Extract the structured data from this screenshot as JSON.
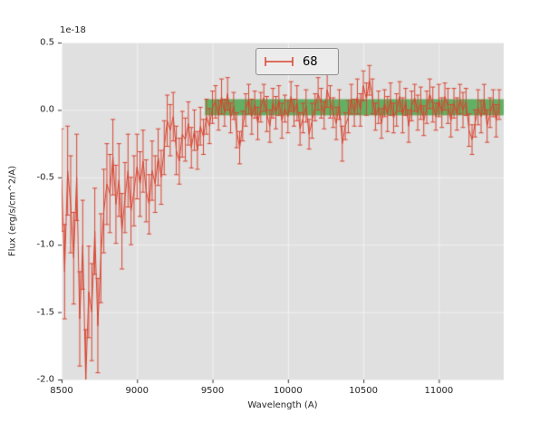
{
  "figure": {
    "offset_text": "1e-18",
    "background": "#ffffff",
    "axes_background": "#e0e0e0",
    "grid_color": "#f2f2f2"
  },
  "chart_data": {
    "type": "line",
    "subtype": "errorbar-spectrum",
    "title": "",
    "xlabel": "Wavelength (A)",
    "ylabel": "Flux (erg/s/cm^2/A)",
    "offset_text": "1e-18",
    "xlim": [
      8500,
      11430
    ],
    "ylim": [
      -2.0,
      0.5
    ],
    "x_ticks": [
      8500,
      9000,
      9500,
      10000,
      10500,
      11000
    ],
    "y_ticks": [
      -2.0,
      -1.5,
      -1.0,
      -0.5,
      0.0,
      0.5
    ],
    "grid": true,
    "legend": {
      "label": "68",
      "position": "upper center"
    },
    "band": {
      "x_start": 9450,
      "x_end": 11430,
      "y_low": -0.04,
      "y_high": 0.08,
      "color": "#4ca64c",
      "alpha": 0.85
    },
    "series": [
      {
        "name": "68",
        "color": "#d9432f",
        "x_start": 8500,
        "x_step": 20,
        "flux": [
          -0.52,
          -1.2,
          -0.45,
          -0.7,
          -1.1,
          -0.5,
          -1.55,
          -1.0,
          -2.0,
          -1.35,
          -1.5,
          -0.9,
          -1.6,
          -1.1,
          -0.75,
          -0.55,
          -0.62,
          -0.35,
          -0.7,
          -0.52,
          -0.9,
          -0.65,
          -0.45,
          -0.75,
          -0.6,
          -0.42,
          -0.55,
          -0.38,
          -0.6,
          -0.7,
          -0.45,
          -0.55,
          -0.35,
          -0.5,
          -0.28,
          -0.08,
          -0.15,
          -0.05,
          -0.3,
          -0.38,
          -0.18,
          -0.22,
          -0.1,
          -0.28,
          -0.15,
          -0.3,
          -0.12,
          -0.2,
          -0.05,
          -0.12,
          0.02,
          0.06,
          -0.04,
          0.1,
          -0.02,
          0.12,
          -0.06,
          0.03,
          -0.15,
          -0.28,
          -0.12,
          0.0,
          0.08,
          -0.05,
          0.04,
          -0.1,
          0.02,
          0.09,
          -0.03,
          -0.12,
          0.05,
          -0.02,
          0.07,
          -0.08,
          0.01,
          -0.05,
          0.1,
          -0.02,
          0.05,
          -0.14,
          -0.06,
          0.03,
          -0.18,
          -0.08,
          0.02,
          0.12,
          0.05,
          -0.04,
          0.15,
          0.06,
          -0.02,
          -0.1,
          0.04,
          -0.25,
          -0.12,
          -0.05,
          0.08,
          -0.02,
          0.1,
          0.0,
          0.18,
          0.08,
          0.22,
          0.1,
          -0.05,
          0.02,
          -0.1,
          0.05,
          -0.03,
          0.08,
          -0.06,
          0.0,
          0.1,
          -0.04,
          0.06,
          -0.12,
          0.03,
          0.09,
          -0.02,
          0.05,
          -0.08,
          0.02,
          0.12,
          0.04,
          -0.05,
          0.07,
          -0.02,
          0.1,
          0.03,
          -0.08,
          0.05,
          -0.03,
          0.08,
          0.0,
          0.06,
          -0.15,
          -0.22,
          -0.1,
          0.02,
          -0.05,
          0.08,
          -0.12,
          -0.02,
          0.05,
          -0.08,
          0.04
        ],
        "err": [
          0.38,
          0.35,
          0.33,
          0.36,
          0.34,
          0.32,
          0.35,
          0.33,
          0.37,
          0.34,
          0.36,
          0.32,
          0.35,
          0.33,
          0.31,
          0.3,
          0.29,
          0.28,
          0.29,
          0.27,
          0.28,
          0.26,
          0.27,
          0.25,
          0.26,
          0.24,
          0.24,
          0.23,
          0.23,
          0.22,
          0.22,
          0.21,
          0.21,
          0.2,
          0.2,
          0.19,
          0.19,
          0.18,
          0.18,
          0.17,
          0.17,
          0.16,
          0.16,
          0.15,
          0.15,
          0.14,
          0.14,
          0.13,
          0.13,
          0.13,
          0.12,
          0.12,
          0.11,
          0.13,
          0.1,
          0.12,
          0.11,
          0.1,
          0.13,
          0.12,
          0.11,
          0.12,
          0.11,
          0.13,
          0.1,
          0.12,
          0.11,
          0.1,
          0.13,
          0.12,
          0.11,
          0.12,
          0.11,
          0.13,
          0.1,
          0.12,
          0.11,
          0.1,
          0.13,
          0.12,
          0.11,
          0.12,
          0.11,
          0.13,
          0.1,
          0.12,
          0.11,
          0.1,
          0.13,
          0.12,
          0.11,
          0.12,
          0.11,
          0.13,
          0.1,
          0.12,
          0.11,
          0.1,
          0.13,
          0.12,
          0.11,
          0.12,
          0.11,
          0.13,
          0.1,
          0.12,
          0.11,
          0.1,
          0.13,
          0.12,
          0.11,
          0.12,
          0.11,
          0.13,
          0.1,
          0.12,
          0.11,
          0.1,
          0.13,
          0.12,
          0.11,
          0.12,
          0.11,
          0.13,
          0.1,
          0.12,
          0.11,
          0.1,
          0.13,
          0.12,
          0.11,
          0.12,
          0.11,
          0.13,
          0.1,
          0.12,
          0.11,
          0.1,
          0.13,
          0.12,
          0.11,
          0.12,
          0.11,
          0.1,
          0.12,
          0.11
        ]
      }
    ]
  }
}
